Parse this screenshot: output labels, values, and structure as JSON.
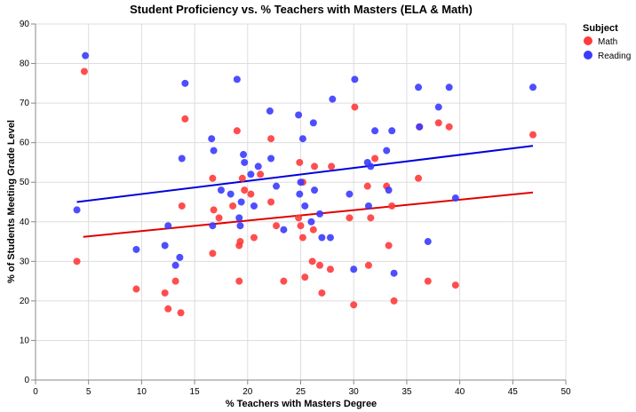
{
  "chart_data": {
    "type": "scatter",
    "title": "Student Proficiency vs. % Teachers with Masters (ELA & Math)",
    "xlabel": "% Teachers with Masters Degree",
    "ylabel": "% of Students Meeting Grade Level",
    "xlim": [
      0,
      50
    ],
    "ylim": [
      0,
      90
    ],
    "xticks": [
      0,
      5,
      10,
      15,
      20,
      25,
      30,
      35,
      40,
      45,
      50
    ],
    "yticks": [
      0,
      10,
      20,
      30,
      40,
      50,
      60,
      70,
      80,
      90
    ],
    "grid": true,
    "legend": {
      "title": "Subject",
      "position": "top-right"
    },
    "series": [
      {
        "name": "Math",
        "color": "#ff3b3b",
        "trend": [
          [
            4.5,
            36.2
          ],
          [
            46.9,
            47.4
          ]
        ],
        "trend_color": "#e00000",
        "points": [
          [
            4.6,
            78
          ],
          [
            3.9,
            30
          ],
          [
            9.5,
            23
          ],
          [
            12.2,
            22
          ],
          [
            12.5,
            18
          ],
          [
            13.2,
            25
          ],
          [
            13.7,
            17
          ],
          [
            13.8,
            44
          ],
          [
            14.1,
            66
          ],
          [
            16.7,
            51
          ],
          [
            16.8,
            43
          ],
          [
            16.7,
            32
          ],
          [
            17.3,
            41
          ],
          [
            18.6,
            44
          ],
          [
            19.0,
            63
          ],
          [
            19.2,
            34
          ],
          [
            19.3,
            35
          ],
          [
            19.5,
            51
          ],
          [
            19.2,
            25
          ],
          [
            19.7,
            48
          ],
          [
            20.3,
            47
          ],
          [
            20.6,
            36
          ],
          [
            21.2,
            52
          ],
          [
            22.2,
            61
          ],
          [
            22.2,
            45
          ],
          [
            22.7,
            39
          ],
          [
            23.4,
            25
          ],
          [
            24.8,
            41
          ],
          [
            24.9,
            55
          ],
          [
            25.0,
            39
          ],
          [
            25.2,
            36
          ],
          [
            25.4,
            26
          ],
          [
            25.2,
            50
          ],
          [
            26.1,
            30
          ],
          [
            26.2,
            38
          ],
          [
            26.3,
            54
          ],
          [
            26.8,
            29
          ],
          [
            27.0,
            22
          ],
          [
            27.8,
            28
          ],
          [
            27.9,
            54
          ],
          [
            29.6,
            41
          ],
          [
            30.0,
            19
          ],
          [
            30.1,
            69
          ],
          [
            31.3,
            49
          ],
          [
            31.4,
            29
          ],
          [
            31.6,
            41
          ],
          [
            32.0,
            56
          ],
          [
            33.1,
            49
          ],
          [
            33.3,
            34
          ],
          [
            33.6,
            44
          ],
          [
            33.8,
            20
          ],
          [
            36.1,
            51
          ],
          [
            36.2,
            64
          ],
          [
            37.0,
            25
          ],
          [
            38.0,
            65
          ],
          [
            39.0,
            64
          ],
          [
            39.6,
            24
          ],
          [
            46.9,
            62
          ]
        ]
      },
      {
        "name": "Reading",
        "color": "#3b3bff",
        "trend": [
          [
            3.9,
            45.0
          ],
          [
            46.9,
            59.2
          ]
        ],
        "trend_color": "#0000dd",
        "points": [
          [
            4.7,
            82
          ],
          [
            3.9,
            43
          ],
          [
            9.5,
            33
          ],
          [
            12.2,
            34
          ],
          [
            12.5,
            39
          ],
          [
            13.2,
            29
          ],
          [
            13.6,
            31
          ],
          [
            13.8,
            56
          ],
          [
            14.1,
            75
          ],
          [
            16.6,
            61
          ],
          [
            16.8,
            58
          ],
          [
            16.7,
            39
          ],
          [
            17.5,
            48
          ],
          [
            18.4,
            47
          ],
          [
            19.0,
            76
          ],
          [
            19.2,
            41
          ],
          [
            19.3,
            39
          ],
          [
            19.4,
            45
          ],
          [
            19.6,
            57
          ],
          [
            19.7,
            55
          ],
          [
            20.3,
            52
          ],
          [
            20.6,
            44
          ],
          [
            21.0,
            54
          ],
          [
            22.1,
            68
          ],
          [
            22.2,
            56
          ],
          [
            22.7,
            49
          ],
          [
            23.4,
            38
          ],
          [
            24.8,
            67
          ],
          [
            24.9,
            47
          ],
          [
            25.0,
            50
          ],
          [
            25.2,
            61
          ],
          [
            25.4,
            44
          ],
          [
            26.0,
            40
          ],
          [
            26.2,
            65
          ],
          [
            26.3,
            48
          ],
          [
            26.8,
            42
          ],
          [
            27.0,
            36
          ],
          [
            27.8,
            36
          ],
          [
            28.0,
            71
          ],
          [
            29.6,
            47
          ],
          [
            30.0,
            28
          ],
          [
            30.1,
            76
          ],
          [
            31.3,
            55
          ],
          [
            31.4,
            44
          ],
          [
            31.6,
            54
          ],
          [
            32.0,
            63
          ],
          [
            33.1,
            58
          ],
          [
            33.3,
            48
          ],
          [
            33.6,
            63
          ],
          [
            33.8,
            27
          ],
          [
            36.1,
            74
          ],
          [
            36.2,
            64
          ],
          [
            37.0,
            35
          ],
          [
            38.0,
            69
          ],
          [
            39.0,
            74
          ],
          [
            39.6,
            46
          ],
          [
            46.9,
            74
          ]
        ]
      }
    ]
  }
}
